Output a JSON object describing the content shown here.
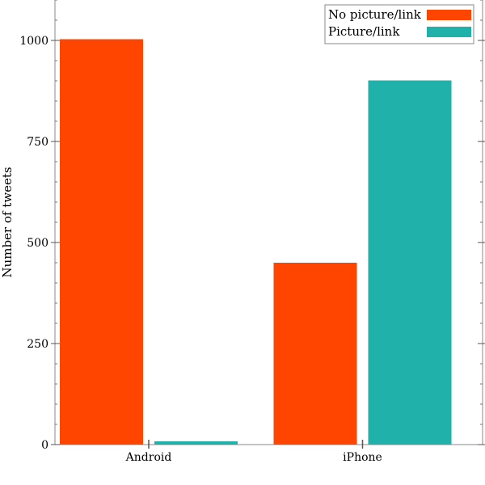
{
  "chart_data": {
    "type": "bar",
    "categories": [
      "Android",
      "iPhone"
    ],
    "series": [
      {
        "name": "No picture/link",
        "color": "#ff4500",
        "values": [
          1003,
          450
        ]
      },
      {
        "name": "Picture/link",
        "color": "#20b2aa",
        "values": [
          8,
          901
        ]
      }
    ],
    "ylabel": "Number of tweets",
    "xlabel": "",
    "ylim": [
      0,
      1100
    ],
    "yticks": [
      0,
      250,
      500,
      750,
      1000
    ],
    "yticks_labels": [
      "0",
      "250",
      "500",
      "750",
      "1000"
    ],
    "grid": false,
    "legend_position": "top-right"
  }
}
